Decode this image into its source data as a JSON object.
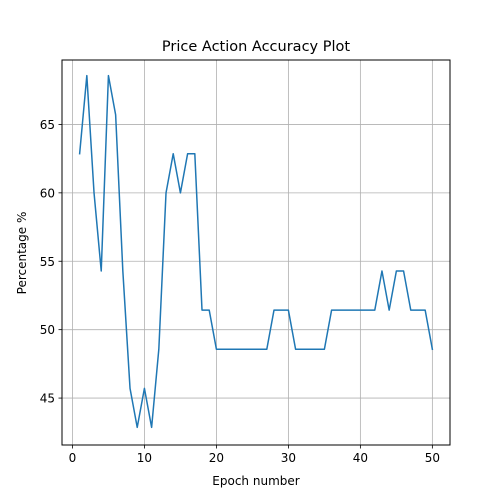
{
  "chart_data": {
    "type": "line",
    "title": "Price Action Accuracy Plot",
    "xlabel": "Epoch number",
    "ylabel": "Percentage %",
    "xlim": [
      -1.45,
      52.45
    ],
    "ylim": [
      41.57,
      69.71
    ],
    "xticks": [
      0,
      10,
      20,
      30,
      40,
      50
    ],
    "yticks": [
      45,
      50,
      55,
      60,
      65
    ],
    "grid": true,
    "line_color": "#1f77b4",
    "series": [
      {
        "x": [
          1,
          2,
          3,
          4,
          5,
          6,
          7,
          8,
          9,
          10,
          11,
          12,
          13,
          14,
          15,
          16,
          17,
          18,
          19,
          20,
          21,
          22,
          23,
          24,
          25,
          26,
          27,
          28,
          29,
          30,
          31,
          32,
          33,
          34,
          35,
          36,
          37,
          38,
          39,
          40,
          41,
          42,
          43,
          44,
          45,
          46,
          47,
          48,
          49,
          50
        ],
        "values": [
          62.86,
          68.57,
          60.0,
          54.29,
          68.57,
          65.71,
          54.29,
          45.71,
          42.86,
          45.71,
          42.86,
          48.57,
          60.0,
          62.86,
          60.0,
          62.86,
          62.86,
          51.43,
          51.43,
          48.57,
          48.57,
          48.57,
          48.57,
          48.57,
          48.57,
          48.57,
          48.57,
          51.43,
          51.43,
          51.43,
          48.57,
          48.57,
          48.57,
          48.57,
          48.57,
          51.43,
          51.43,
          51.43,
          51.43,
          51.43,
          51.43,
          51.43,
          54.29,
          51.43,
          54.29,
          54.29,
          51.43,
          51.43,
          51.43,
          48.57
        ]
      }
    ]
  }
}
